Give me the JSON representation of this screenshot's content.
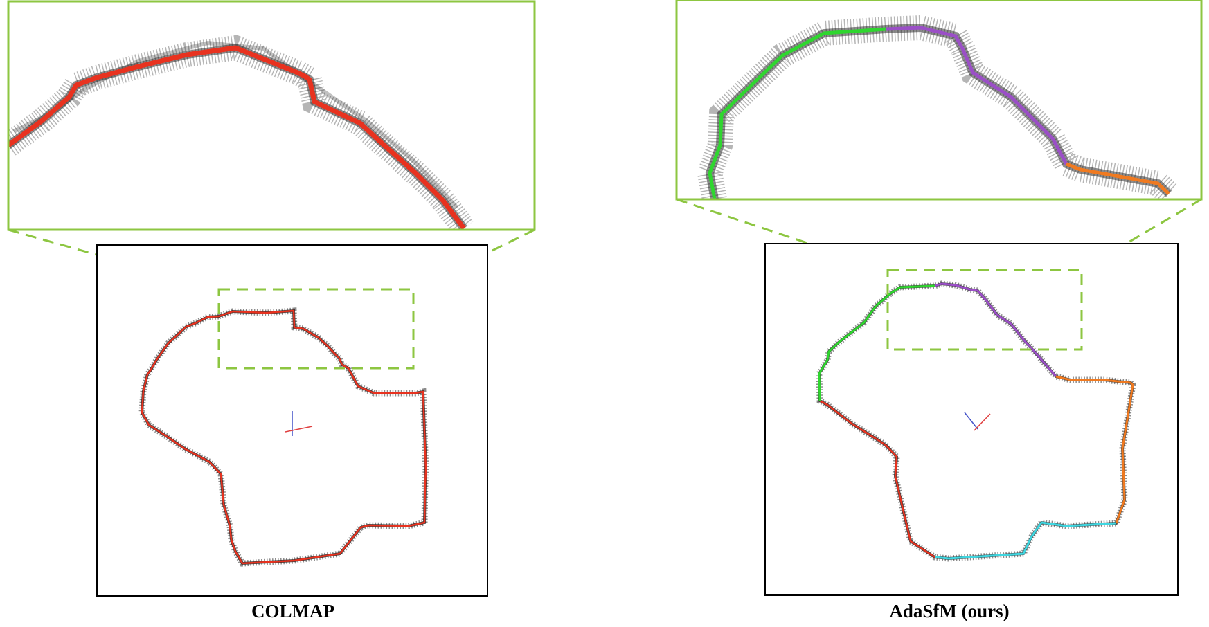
{
  "captions": {
    "left": "COLMAP",
    "right": "AdaSfM (ours)"
  },
  "colors": {
    "zoom_frame": "#8dc641",
    "map_box_border": "#000000",
    "point_cloud": "#2b2b2b",
    "colmap_trajectory": "#e8321f",
    "adasfm_segment_1": "#e8321f",
    "adasfm_segment_2": "#2fd62f",
    "adasfm_segment_3": "#9b4fc7",
    "adasfm_segment_4": "#f07a20",
    "adasfm_segment_5": "#3fd6e0",
    "axis_red": "#e04040",
    "axis_blue": "#4050c8"
  },
  "panels": [
    {
      "name": "colmap",
      "trajectory_segments": [
        "colmap_trajectory"
      ]
    },
    {
      "name": "adasfm",
      "trajectory_segments": [
        "adasfm_segment_1",
        "adasfm_segment_2",
        "adasfm_segment_3",
        "adasfm_segment_4",
        "adasfm_segment_5"
      ]
    }
  ]
}
